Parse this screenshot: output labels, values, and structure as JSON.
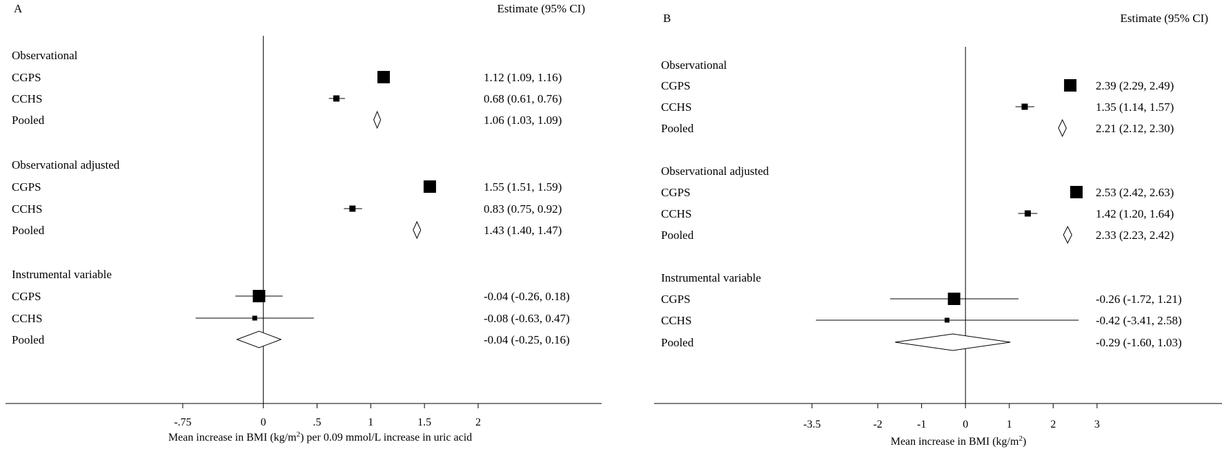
{
  "chart_data": [
    {
      "type": "forest",
      "panel_label": "A",
      "estimate_header": "Estimate (95% CI)",
      "xlabel_parts": {
        "pre": "Mean increase in BMI (kg/m",
        "sup": "2",
        "post": ") per 0.09 mmol/L increase in uric acid"
      },
      "x_ticks": [
        {
          "value": -0.75,
          "label": "-.75"
        },
        {
          "value": 0,
          "label": "0"
        },
        {
          "value": 0.5,
          "label": ".5"
        },
        {
          "value": 1,
          "label": "1"
        },
        {
          "value": 1.5,
          "label": "1.5"
        },
        {
          "value": 2,
          "label": "2"
        }
      ],
      "xlim": [
        -2.4,
        3.15
      ],
      "reference_line": 0,
      "groups": [
        {
          "heading": "Observational",
          "rows": [
            {
              "label": "CGPS",
              "kind": "study",
              "estimate": 1.12,
              "lower": 1.09,
              "upper": 1.16,
              "weight": "large",
              "text": "1.12 (1.09, 1.16)"
            },
            {
              "label": "CCHS",
              "kind": "study",
              "estimate": 0.68,
              "lower": 0.61,
              "upper": 0.76,
              "weight": "small",
              "text": "0.68 (0.61, 0.76)"
            },
            {
              "label": "Pooled",
              "kind": "pooled",
              "estimate": 1.06,
              "lower": 1.03,
              "upper": 1.09,
              "text": "1.06 (1.03, 1.09)"
            }
          ]
        },
        {
          "heading": "Observational adjusted",
          "rows": [
            {
              "label": "CGPS",
              "kind": "study",
              "estimate": 1.55,
              "lower": 1.51,
              "upper": 1.59,
              "weight": "large",
              "text": "1.55 (1.51, 1.59)"
            },
            {
              "label": "CCHS",
              "kind": "study",
              "estimate": 0.83,
              "lower": 0.75,
              "upper": 0.92,
              "weight": "small",
              "text": "0.83 (0.75, 0.92)"
            },
            {
              "label": "Pooled",
              "kind": "pooled",
              "estimate": 1.43,
              "lower": 1.4,
              "upper": 1.47,
              "text": "1.43 (1.40, 1.47)"
            }
          ]
        },
        {
          "heading": "Instrumental variable",
          "rows": [
            {
              "label": "CGPS",
              "kind": "study",
              "estimate": -0.04,
              "lower": -0.26,
              "upper": 0.18,
              "weight": "large",
              "text": "-0.04 (-0.26, 0.18)"
            },
            {
              "label": "CCHS",
              "kind": "study",
              "estimate": -0.08,
              "lower": -0.63,
              "upper": 0.47,
              "weight": "tiny",
              "text": "-0.08 (-0.63, 0.47)"
            },
            {
              "label": "Pooled",
              "kind": "pooled",
              "estimate": -0.04,
              "lower": -0.25,
              "upper": 0.16,
              "text": "-0.04 (-0.25, 0.16)"
            }
          ]
        }
      ]
    },
    {
      "type": "forest",
      "panel_label": "B",
      "estimate_header": "Estimate (95% CI)",
      "xlabel_parts": {
        "pre": "Mean increase in BMI (kg/m",
        "sup": "2",
        "post": ")"
      },
      "x_ticks": [
        {
          "value": -3.5,
          "label": "-3.5"
        },
        {
          "value": -2,
          "label": "-2"
        },
        {
          "value": -1,
          "label": "-1"
        },
        {
          "value": 0,
          "label": "0"
        },
        {
          "value": 1,
          "label": "1"
        },
        {
          "value": 2,
          "label": "2"
        },
        {
          "value": 3,
          "label": "3"
        }
      ],
      "xlim": [
        -7.1,
        5.85
      ],
      "reference_line": 0,
      "groups": [
        {
          "heading": "Observational",
          "rows": [
            {
              "label": "CGPS",
              "kind": "study",
              "estimate": 2.39,
              "lower": 2.29,
              "upper": 2.49,
              "weight": "large",
              "text": "2.39 (2.29, 2.49)"
            },
            {
              "label": "CCHS",
              "kind": "study",
              "estimate": 1.35,
              "lower": 1.14,
              "upper": 1.57,
              "weight": "small",
              "text": "1.35 (1.14, 1.57)"
            },
            {
              "label": "Pooled",
              "kind": "pooled",
              "estimate": 2.21,
              "lower": 2.12,
              "upper": 2.3,
              "text": "2.21 (2.12, 2.30)"
            }
          ]
        },
        {
          "heading": "Observational adjusted",
          "rows": [
            {
              "label": "CGPS",
              "kind": "study",
              "estimate": 2.53,
              "lower": 2.42,
              "upper": 2.63,
              "weight": "large",
              "text": "2.53 (2.42, 2.63)"
            },
            {
              "label": "CCHS",
              "kind": "study",
              "estimate": 1.42,
              "lower": 1.2,
              "upper": 1.64,
              "weight": "small",
              "text": "1.42 (1.20, 1.64)"
            },
            {
              "label": "Pooled",
              "kind": "pooled",
              "estimate": 2.33,
              "lower": 2.23,
              "upper": 2.42,
              "text": "2.33 (2.23, 2.42)"
            }
          ]
        },
        {
          "heading": "Instrumental variable",
          "rows": [
            {
              "label": "CGPS",
              "kind": "study",
              "estimate": -0.26,
              "lower": -1.72,
              "upper": 1.21,
              "weight": "large",
              "text": "-0.26 (-1.72, 1.21)"
            },
            {
              "label": "CCHS",
              "kind": "study",
              "estimate": -0.42,
              "lower": -3.41,
              "upper": 2.58,
              "weight": "tiny",
              "text": "-0.42 (-3.41, 2.58)"
            },
            {
              "label": "Pooled",
              "kind": "pooled",
              "estimate": -0.29,
              "lower": -1.6,
              "upper": 1.03,
              "text": "-0.29 (-1.60, 1.03)"
            }
          ]
        }
      ]
    }
  ]
}
